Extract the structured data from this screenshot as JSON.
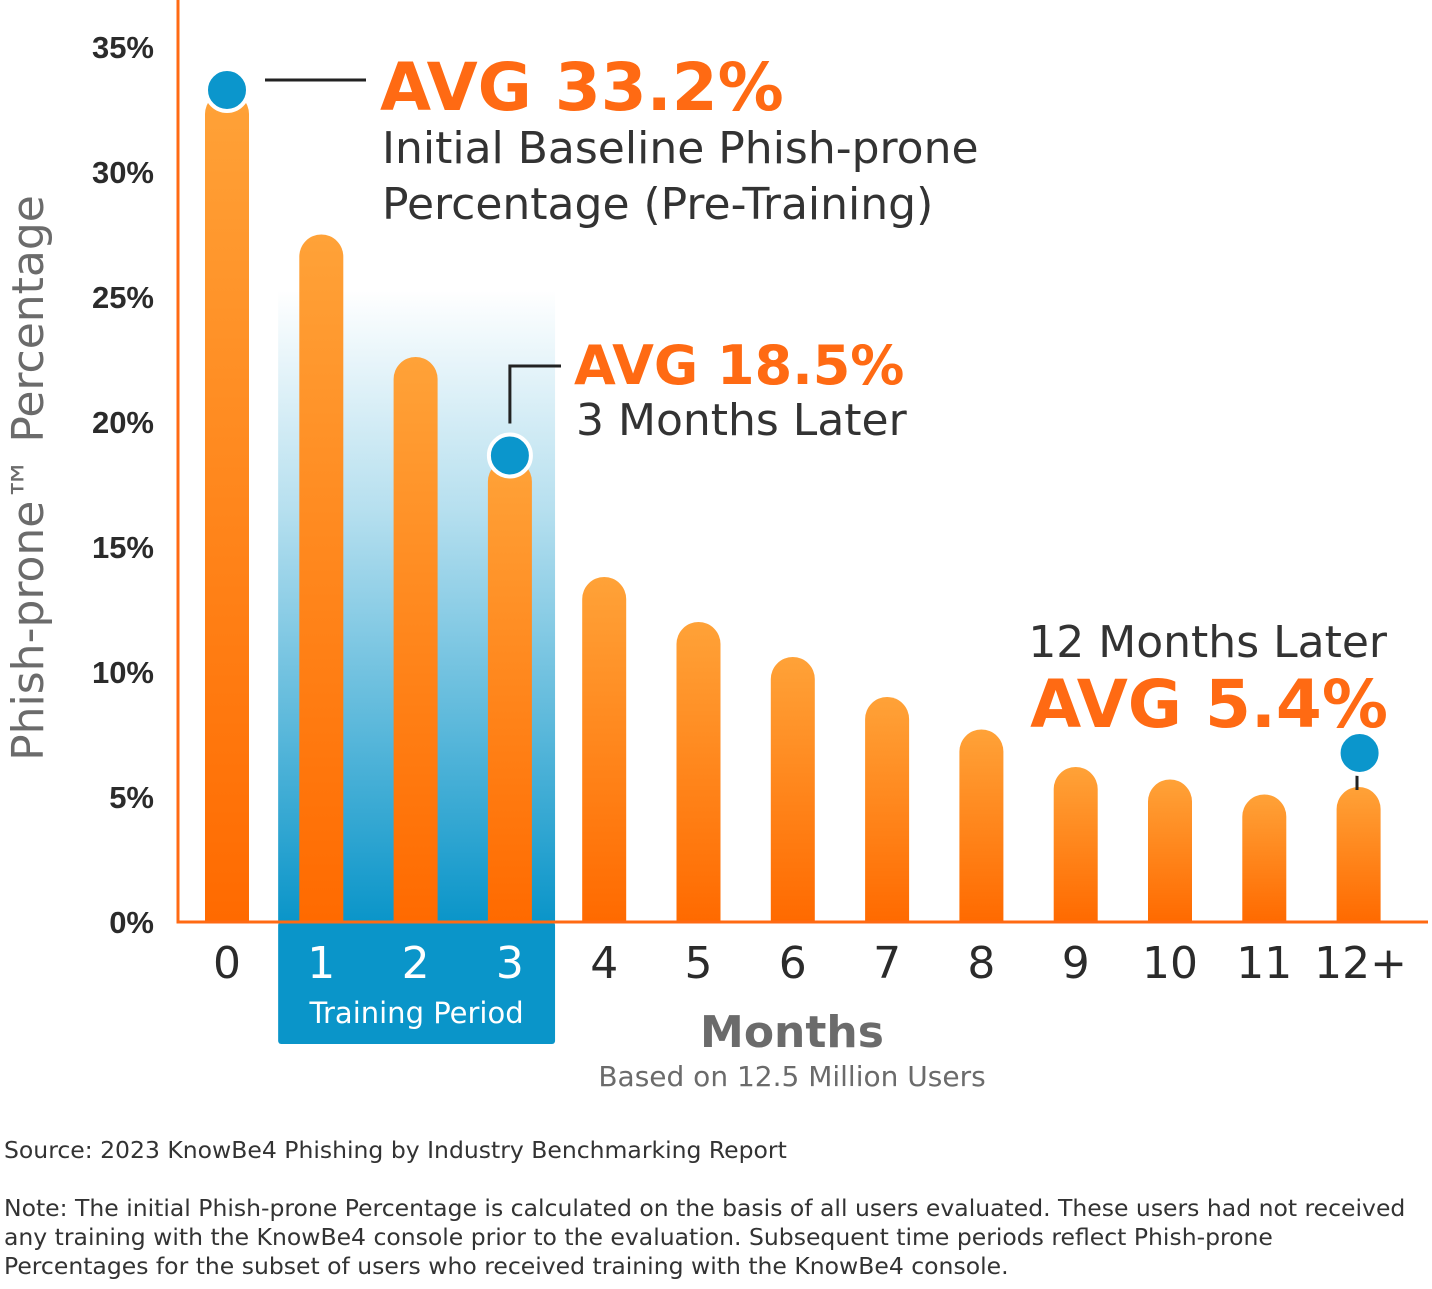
{
  "chart_data": {
    "type": "bar",
    "categories": [
      "0",
      "1",
      "2",
      "3",
      "4",
      "5",
      "6",
      "7",
      "8",
      "9",
      "10",
      "11",
      "12+"
    ],
    "values": [
      33.2,
      27.5,
      22.6,
      18.5,
      13.8,
      12.0,
      10.6,
      9.0,
      7.7,
      6.2,
      5.7,
      5.1,
      5.4
    ],
    "ylim": [
      0,
      36
    ],
    "yticks": [
      0,
      5,
      10,
      15,
      20,
      25,
      30,
      35
    ],
    "ytick_labels": [
      "0%",
      "5%",
      "10%",
      "15%",
      "20%",
      "25%",
      "30%",
      "35%"
    ],
    "ylabel": "Phish-prone™ Percentage",
    "xlabel": "Months",
    "x_subtitle": "Based on 12.5 Million Users",
    "highlight_band": {
      "label": "Training Period",
      "categories": [
        "1",
        "2",
        "3"
      ]
    },
    "annotations": [
      {
        "category": "0",
        "value": 33.2,
        "headline": "AVG 33.2%",
        "text_lines": [
          "Initial Baseline Phish-prone",
          "Percentage (Pre-Training)"
        ]
      },
      {
        "category": "3",
        "value": 18.5,
        "headline": "AVG 18.5%",
        "text_lines": [
          "3 Months Later"
        ]
      },
      {
        "category": "12+",
        "value": 5.4,
        "headline": "AVG 5.4%",
        "text_lines": [
          "12 Months Later"
        ]
      }
    ],
    "grid": false,
    "legend": "none"
  },
  "colors": {
    "bar_top": "#ffa238",
    "bar_bottom": "#ff6a00",
    "axis": "#ff6a13",
    "marker": "#0b96cc",
    "highlight": "#0a95c9",
    "headline": "#ff6a13"
  },
  "source": "Source: 2023 KnowBe4 Phishing by Industry Benchmarking Report",
  "note": "Note: The initial Phish-prone Percentage is calculated on the basis of all users evaluated. These users had not received any training with the KnowBe4 console prior to the evaluation. Subsequent time periods reflect Phish-prone Percentages for the subset of users who received training with the KnowBe4 console."
}
